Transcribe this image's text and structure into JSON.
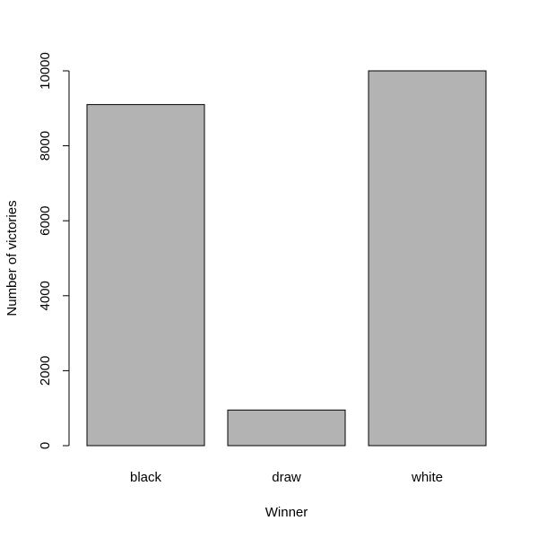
{
  "chart_data": {
    "type": "bar",
    "categories": [
      "black",
      "draw",
      "white"
    ],
    "values": [
      9100,
      950,
      10000
    ],
    "xlabel": "Winner",
    "ylabel": "Number of victories",
    "yticks": [
      0,
      2000,
      4000,
      6000,
      8000,
      10000
    ],
    "ylim": [
      0,
      10000
    ],
    "grid": false,
    "legend": "none",
    "bar_color": "#b3b3b3",
    "bar_border_color": "#000000"
  }
}
